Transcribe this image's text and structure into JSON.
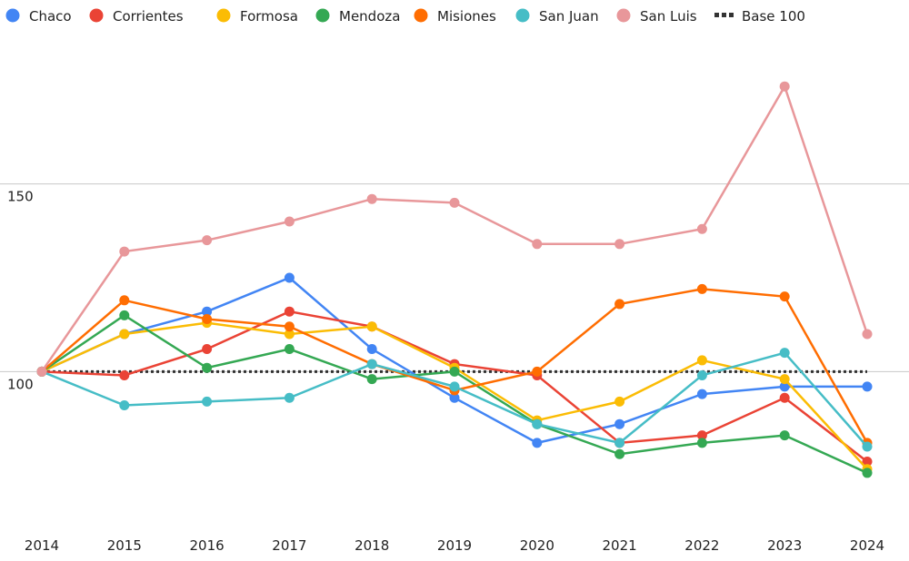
{
  "chart_data": {
    "type": "line",
    "title": "",
    "xlabel": "",
    "ylabel": "",
    "x": [
      "2014",
      "2015",
      "2016",
      "2017",
      "2018",
      "2019",
      "2020",
      "2021",
      "2022",
      "2023",
      "2024"
    ],
    "ylim": [
      50,
      200
    ],
    "yticks": [
      "100",
      "150"
    ],
    "ytick_values": [
      100,
      150
    ],
    "grid": true,
    "legend_position": "top",
    "series": [
      {
        "name": "Chaco",
        "color": "#4285F4",
        "values": [
          100,
          110,
          116,
          125,
          106,
          93,
          81,
          86,
          94,
          96,
          96
        ]
      },
      {
        "name": "Corrientes",
        "color": "#EA4335",
        "values": [
          100,
          99,
          106,
          116,
          112,
          102,
          99,
          81,
          83,
          93,
          76
        ]
      },
      {
        "name": "Formosa",
        "color": "#FBBC04",
        "values": [
          100,
          110,
          113,
          110,
          112,
          101,
          87,
          92,
          103,
          98,
          74
        ]
      },
      {
        "name": "Mendoza",
        "color": "#34A853",
        "values": [
          100,
          115,
          101,
          106,
          98,
          100,
          86,
          78,
          81,
          83,
          73
        ]
      },
      {
        "name": "Misiones",
        "color": "#FF6D01",
        "values": [
          100,
          119,
          114,
          112,
          102,
          95,
          100,
          118,
          122,
          120,
          81
        ]
      },
      {
        "name": "San Juan",
        "color": "#46BDC6",
        "values": [
          100,
          91,
          92,
          93,
          102,
          96,
          86,
          81,
          99,
          105,
          80
        ]
      },
      {
        "name": "San Luis",
        "color": "#E8979A",
        "values": [
          100,
          132,
          135,
          140,
          146,
          145,
          134,
          134,
          138,
          176,
          110
        ]
      }
    ],
    "reference_line": {
      "name": "Base 100",
      "value": 100,
      "color": "#333333",
      "style": "dotted"
    }
  }
}
